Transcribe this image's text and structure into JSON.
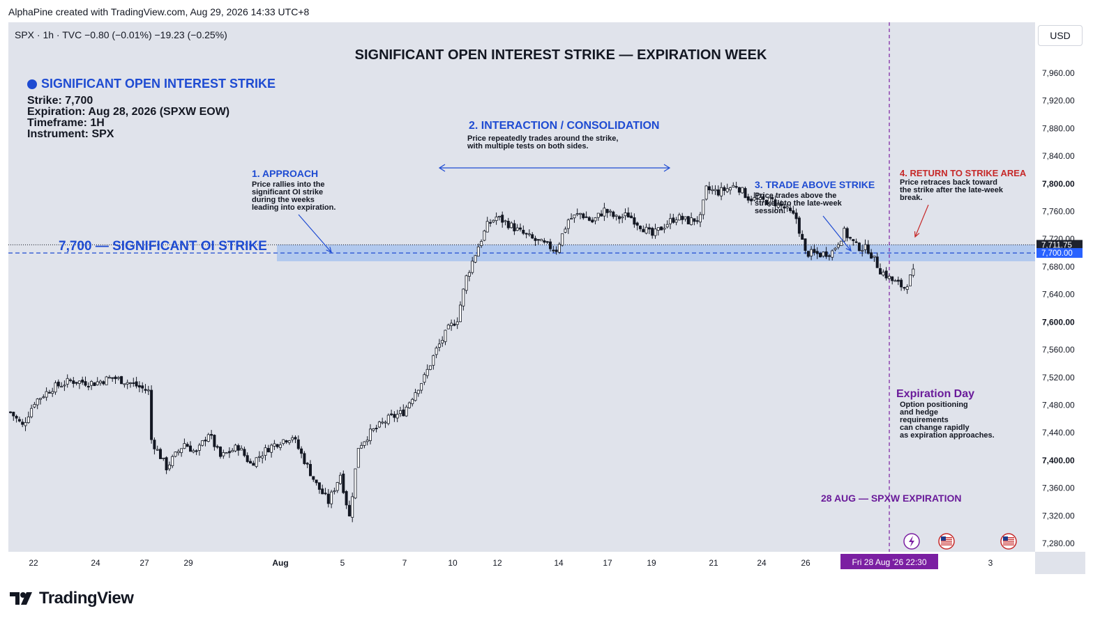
{
  "header": {
    "credit": "AlphaPine created with TradingView.com, Aug 29, 2026 14:33 UTC+8"
  },
  "symbol_line": "SPX · 1h · TVC  −0.80 (−0.01%)  −19.23 (−0.25%)",
  "currency_button": "USD",
  "footer": {
    "brand": "TradingView"
  },
  "info_box": {
    "heading": "SIGNIFICANT OPEN INTEREST STRIKE",
    "lines": [
      "Strike: 7,700",
      "Expiration: Aug 28, 2026 (SPXW EOW)",
      "Timeframe: 1H",
      "Instrument: SPX"
    ]
  },
  "annotations": {
    "approach": {
      "title": "1. APPROACH",
      "text": "Price rallies into the\nsignificant OI strike\nduring the weeks\nleading into expiration."
    },
    "interaction": {
      "title": "2. INTERACTION / CONSOLIDATION",
      "text": "Price repeatedly trades around the strike,\nwith multiple tests on both sides."
    },
    "above": {
      "title": "3. TRADE ABOVE STRIKE",
      "text": "Price trades above the\nstrike into the late-week\nsession."
    },
    "return": {
      "title": "4. RETURN TO STRIKE AREA",
      "text": "Price retraces back toward\nthe strike after the late-week\nbreak."
    },
    "expiration_day": {
      "title": "Expiration Day",
      "text": "Option positioning\nand hedge\nrequirements\ncan change rapidly\nas expiration approaches."
    },
    "expiration_label": "28 AUG — SPXW EXPIRATION",
    "strike_label": "7,700 — SIGNIFICANT OI STRIKE"
  },
  "colors": {
    "blue": "#1e4bd2",
    "red": "#c62828",
    "purple": "#6a1b9a",
    "zone": "#a9c4ef",
    "up": "#ffffff",
    "down": "#131722"
  },
  "chart_data": {
    "type": "candlestick",
    "title": "SIGNIFICANT OPEN INTEREST STRIKE — EXPIRATION WEEK",
    "ylim": [
      7260,
      8000
    ],
    "y_ticks": [
      7280,
      7320,
      7360,
      7400,
      7440,
      7480,
      7520,
      7560,
      7600,
      7640,
      7680,
      7720,
      7760,
      7800,
      7840,
      7880,
      7920,
      7960
    ],
    "y_tick_labels": [
      "7,280.00",
      "7,320.00",
      "7,360.00",
      "7,400.00",
      "7,440.00",
      "7,480.00",
      "7,520.00",
      "7,560.00",
      "7,600.00",
      "7,640.00",
      "7,680.00",
      "7,720.00",
      "7,760.00",
      "7,800.00",
      "7,840.00",
      "7,880.00",
      "7,920.00",
      "7,960.00"
    ],
    "x_ticks": [
      "22",
      "24",
      "27",
      "29",
      "Aug",
      "5",
      "7",
      "10",
      "12",
      "14",
      "17",
      "19",
      "21",
      "24",
      "26",
      "3"
    ],
    "last_price_label": "7,711.75",
    "strike_price_label": "7,700.00",
    "strike": 7700,
    "strike_zone": [
      7688,
      7712
    ],
    "crosshair_time": "Fri 28 Aug '26   22:30",
    "close_path": [
      [
        0,
        7470
      ],
      [
        4,
        7450
      ],
      [
        8,
        7485
      ],
      [
        14,
        7505
      ],
      [
        20,
        7515
      ],
      [
        28,
        7512
      ],
      [
        34,
        7520
      ],
      [
        40,
        7512
      ],
      [
        46,
        7500
      ],
      [
        47,
        7430
      ],
      [
        52,
        7390
      ],
      [
        58,
        7425
      ],
      [
        62,
        7410
      ],
      [
        66,
        7440
      ],
      [
        70,
        7405
      ],
      [
        76,
        7420
      ],
      [
        80,
        7395
      ],
      [
        86,
        7418
      ],
      [
        90,
        7428
      ],
      [
        94,
        7435
      ],
      [
        98,
        7400
      ],
      [
        102,
        7365
      ],
      [
        106,
        7340
      ],
      [
        110,
        7380
      ],
      [
        113,
        7318
      ],
      [
        116,
        7420
      ],
      [
        120,
        7440
      ],
      [
        126,
        7460
      ],
      [
        131,
        7470
      ],
      [
        135,
        7500
      ],
      [
        138,
        7520
      ],
      [
        142,
        7560
      ],
      [
        146,
        7590
      ],
      [
        149,
        7605
      ],
      [
        152,
        7665
      ],
      [
        156,
        7710
      ],
      [
        159,
        7740
      ],
      [
        162,
        7752
      ],
      [
        166,
        7742
      ],
      [
        170,
        7730
      ],
      [
        174,
        7720
      ],
      [
        178,
        7712
      ],
      [
        182,
        7705
      ],
      [
        186,
        7748
      ],
      [
        190,
        7757
      ],
      [
        194,
        7745
      ],
      [
        198,
        7762
      ],
      [
        202,
        7750
      ],
      [
        206,
        7755
      ],
      [
        210,
        7740
      ],
      [
        214,
        7725
      ],
      [
        218,
        7740
      ],
      [
        222,
        7752
      ],
      [
        226,
        7746
      ],
      [
        230,
        7750
      ],
      [
        232,
        7792
      ],
      [
        236,
        7788
      ],
      [
        242,
        7798
      ],
      [
        246,
        7780
      ],
      [
        250,
        7775
      ],
      [
        254,
        7775
      ],
      [
        258,
        7765
      ],
      [
        262,
        7750
      ],
      [
        265,
        7700
      ],
      [
        270,
        7698
      ],
      [
        274,
        7702
      ],
      [
        278,
        7730
      ],
      [
        282,
        7710
      ],
      [
        286,
        7705
      ],
      [
        290,
        7675
      ],
      [
        294,
        7660
      ],
      [
        298,
        7650
      ],
      [
        302,
        7678
      ],
      [
        306,
        7685
      ],
      [
        310,
        7658
      ],
      [
        314,
        7664
      ],
      [
        318,
        7668
      ],
      [
        322,
        7672
      ],
      [
        326,
        7676
      ],
      [
        330,
        7668
      ],
      [
        334,
        7664
      ],
      [
        338,
        7668
      ],
      [
        341,
        7690
      ],
      [
        344,
        7712
      ],
      [
        348,
        7718
      ],
      [
        352,
        7740
      ],
      [
        354,
        7765
      ],
      [
        357,
        7705
      ],
      [
        360,
        7704
      ],
      [
        364,
        7710
      ]
    ]
  }
}
